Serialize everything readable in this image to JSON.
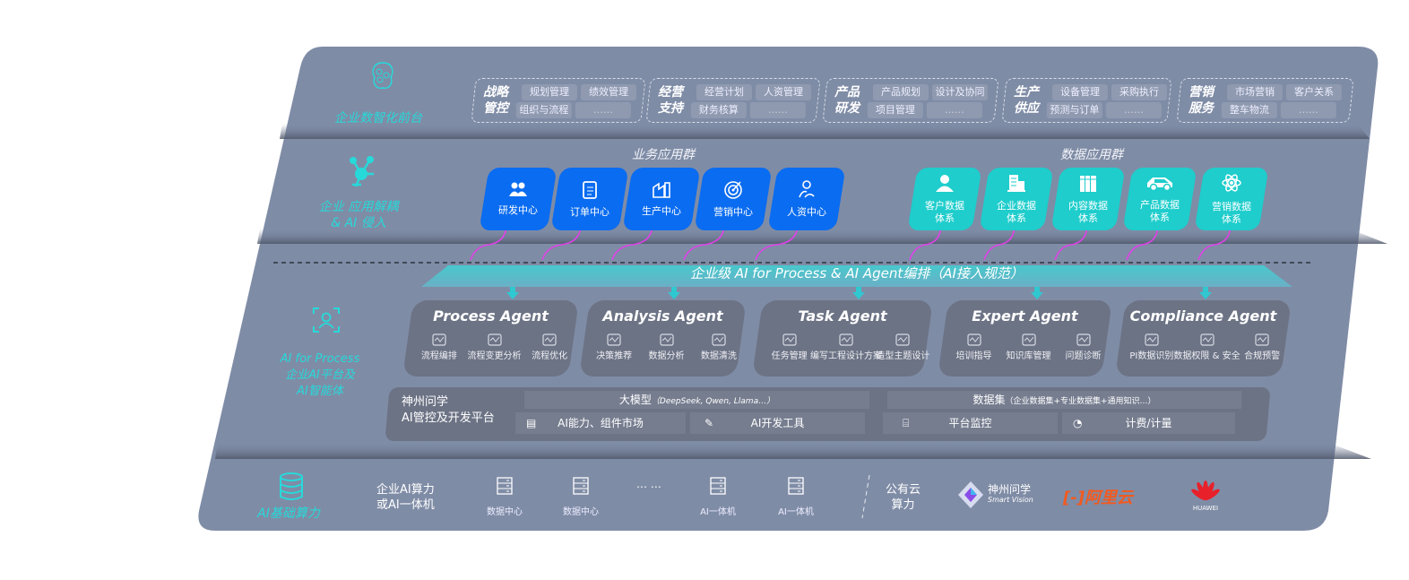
{
  "layers": {
    "frontend": {
      "label": "企业数智化前台",
      "icon": "brain-icon"
    },
    "apps": {
      "label_line1": "企业 应用解耦",
      "label_line2": "& AI 侵入",
      "icon": "molecule-icon"
    },
    "ai_platform": {
      "label_line1": "AI for Process",
      "label_line2": "企业AI平台及",
      "label_line3": "AI智能体",
      "icon": "face-scan-icon"
    },
    "compute": {
      "label": "AI基础算力",
      "icon": "database-icon"
    }
  },
  "front_groups": [
    {
      "title1": "战略",
      "title2": "管控",
      "chips": [
        "规划管理",
        "绩效管理",
        "组织与流程",
        "……"
      ]
    },
    {
      "title1": "经营",
      "title2": "支持",
      "chips": [
        "经营计划",
        "人资管理",
        "财务核算",
        "……"
      ]
    },
    {
      "title1": "产品",
      "title2": "研发",
      "chips": [
        "产品规划",
        "设计及协同",
        "项目管理",
        "……"
      ]
    },
    {
      "title1": "生产",
      "title2": "供应",
      "chips": [
        "设备管理",
        "采购执行",
        "预测与订单",
        "……"
      ]
    },
    {
      "title1": "营销",
      "title2": "服务",
      "chips": [
        "市场营销",
        "客户关系",
        "整车物流",
        "……"
      ]
    }
  ],
  "business_apps": {
    "title": "业务应用群",
    "color": "#0a6cf0",
    "items": [
      {
        "label": "研发中心",
        "icon": "users-icon"
      },
      {
        "label": "订单中心",
        "icon": "clipboard-icon"
      },
      {
        "label": "生产中心",
        "icon": "factory-icon"
      },
      {
        "label": "营销中心",
        "icon": "target-icon"
      },
      {
        "label": "人资中心",
        "icon": "person-icon"
      }
    ]
  },
  "data_apps": {
    "title": "数据应用群",
    "color": "#1ecdcc",
    "items": [
      {
        "line1": "客户数据",
        "line2": "体系",
        "icon": "user-icon"
      },
      {
        "line1": "企业数据",
        "line2": "体系",
        "icon": "building-icon"
      },
      {
        "line1": "内容数据",
        "line2": "体系",
        "icon": "books-icon"
      },
      {
        "line1": "产品数据",
        "line2": "体系",
        "icon": "car-icon"
      },
      {
        "line1": "营销数据",
        "line2": "体系",
        "icon": "atom-icon"
      }
    ]
  },
  "banner": "企业级 AI for Process & AI Agent编排（AI接入规范）",
  "agents": [
    {
      "title": "Process Agent",
      "features": [
        "流程编排",
        "流程变更分析",
        "流程优化"
      ]
    },
    {
      "title": "Analysis Agent",
      "features": [
        "决策推荐",
        "数据分析",
        "数据清洗"
      ]
    },
    {
      "title": "Task Agent",
      "features": [
        "任务管理",
        "编写工程设计方案",
        "造型主题设计"
      ]
    },
    {
      "title": "Expert Agent",
      "features": [
        "培训指导",
        "知识库管理",
        "问题诊断"
      ]
    },
    {
      "title": "Compliance Agent",
      "features": [
        "PI数据识别",
        "数据权限 & 安全",
        "合规预警"
      ]
    }
  ],
  "platform": {
    "name_line1": "神州问学",
    "name_line2": "AI管控及开发平台",
    "llm_title": "大模型",
    "llm_note": "（DeepSeek, Qwen, Llama…）",
    "market": "AI能力、组件市场",
    "devtools": "AI开发工具",
    "dataset_title": "数据集",
    "dataset_note": "（企业数据集+专业数据集+通用知识…）",
    "monitor": "平台监控",
    "billing": "计费/计量"
  },
  "compute": {
    "private_line1": "企业AI算力",
    "private_line2": "或AI一体机",
    "servers": [
      "数据中心",
      "数据中心",
      "AI一体机",
      "AI一体机"
    ],
    "ellipsis": "… …",
    "public_line1": "公有云",
    "public_line2": "算力",
    "vendors": [
      {
        "name": "神州问学",
        "sub": "Smart Vision"
      },
      {
        "name": "阿里云",
        "color": "#f25a1f"
      },
      {
        "name": "HUAWEI",
        "color": "#e8202a"
      }
    ]
  },
  "colors": {
    "panel": "#7f8ca6",
    "cyan": "#27d9d9",
    "arrow": "#e040e8"
  }
}
